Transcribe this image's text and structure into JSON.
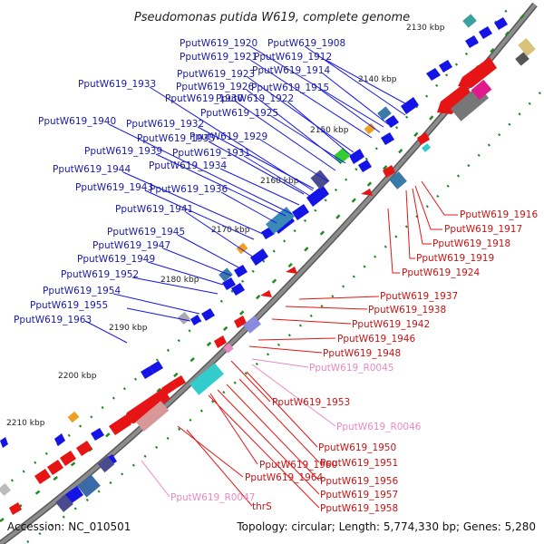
{
  "title": "Pseudomonas putida W619, complete genome",
  "accession": "Accession: NC_010501",
  "summary": "Topology: circular; Length: 5,774,330 bp; Genes: 5,280",
  "scale": [
    "2130 kbp",
    "2140 kbp",
    "2150 kbp",
    "2160 kbp",
    "2170 kbp",
    "2180 kbp",
    "2190 kbp",
    "2200 kbp",
    "2210 kbp"
  ],
  "forward_labels": [
    "PputW619_1908",
    "PputW619_1920",
    "PputW619_1921",
    "PputW619_1912",
    "PputW619_1923",
    "PputW619_1914",
    "PputW619_1933",
    "PputW619_1926",
    "PputW619_1915",
    "PputW619_1930",
    "PputW619_1922",
    "PputW619_1925",
    "PputW619_1940",
    "PputW619_1932",
    "PputW619_1935",
    "PputW619_1929",
    "PputW619_1939",
    "PputW619_1931",
    "PputW619_1934",
    "PputW619_1944",
    "PputW619_1943",
    "PputW619_1936",
    "PputW619_1941",
    "PputW619_1945",
    "PputW619_1947",
    "PputW619_1949",
    "PputW619_1952",
    "PputW619_1954",
    "PputW619_1955",
    "PputW619_1963"
  ],
  "reverse_labels": [
    "PputW619_1916",
    "PputW619_1917",
    "PputW619_1918",
    "PputW619_1919",
    "PputW619_1924",
    "PputW619_1937",
    "PputW619_1938",
    "PputW619_1942",
    "PputW619_1946",
    "PputW619_1948",
    "PputW619_1953",
    "PputW619_1950",
    "PputW619_1951",
    "PputW619_1960",
    "PputW619_1964",
    "PputW619_1956",
    "PputW619_1957",
    "PputW619_1958",
    "thrS"
  ],
  "rna_labels": [
    "PputW619_R0045",
    "PputW619_R0046",
    "PputW619_R0047"
  ],
  "colors": {
    "forward": "#1414e6",
    "reverse": "#e61414",
    "rna": "#e88ac2",
    "backbone": "#7a7a7a",
    "gc_tick": "#1f8a1f"
  }
}
